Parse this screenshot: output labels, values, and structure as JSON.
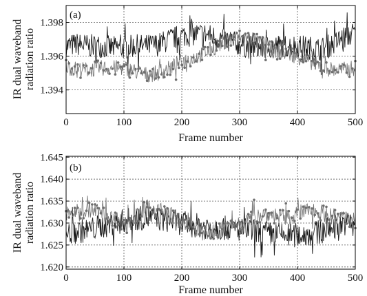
{
  "chart_data": [
    {
      "type": "line",
      "panel_label": "(a)",
      "xlabel": "Frame number",
      "ylabel_lines": [
        "IR dual waveband",
        "radiation ratio"
      ],
      "xlim": [
        0,
        500
      ],
      "ylim": [
        1.3926,
        1.399
      ],
      "xticks": [
        0,
        100,
        200,
        300,
        400,
        500
      ],
      "xtick_labels": [
        "0",
        "100",
        "200",
        "300",
        "400",
        "500"
      ],
      "yticks": [
        1.394,
        1.396,
        1.398
      ],
      "ytick_labels": [
        "1.394",
        "1.396",
        "1.398"
      ],
      "grid": true,
      "series": [
        {
          "color": "#1a1a1a",
          "marker": "none",
          "x": [
            0,
            20,
            40,
            60,
            80,
            100,
            120,
            140,
            160,
            180,
            200,
            220,
            240,
            260,
            280,
            300,
            320,
            340,
            360,
            380,
            400,
            420,
            440,
            460,
            480,
            500
          ],
          "values": [
            1.3966,
            1.3967,
            1.3966,
            1.3966,
            1.3965,
            1.3965,
            1.3966,
            1.3966,
            1.3967,
            1.397,
            1.3972,
            1.3973,
            1.3973,
            1.3971,
            1.3969,
            1.3967,
            1.3965,
            1.3965,
            1.3966,
            1.3966,
            1.3966,
            1.3965,
            1.3964,
            1.3967,
            1.3971,
            1.3974
          ]
        },
        {
          "color": "#6e6e6e",
          "marker": "dot",
          "x": [
            0,
            20,
            40,
            60,
            80,
            100,
            120,
            140,
            160,
            180,
            200,
            220,
            240,
            260,
            280,
            300,
            320,
            340,
            360,
            380,
            400,
            420,
            440,
            460,
            480,
            500
          ],
          "values": [
            1.3954,
            1.3952,
            1.3952,
            1.3953,
            1.3953,
            1.3953,
            1.3951,
            1.3949,
            1.395,
            1.3953,
            1.3957,
            1.3959,
            1.3962,
            1.3966,
            1.397,
            1.3971,
            1.397,
            1.3967,
            1.3963,
            1.3962,
            1.396,
            1.3957,
            1.3954,
            1.3952,
            1.3952,
            1.3953
          ]
        }
      ]
    },
    {
      "type": "line",
      "panel_label": "(b)",
      "xlabel": "Frame number",
      "ylabel_lines": [
        "IR dual waveband",
        "radiation ratio"
      ],
      "xlim": [
        0,
        500
      ],
      "ylim": [
        1.6195,
        1.6452
      ],
      "xticks": [
        0,
        100,
        200,
        300,
        400,
        500
      ],
      "xtick_labels": [
        "0",
        "100",
        "200",
        "300",
        "400",
        "500"
      ],
      "yticks": [
        1.62,
        1.625,
        1.63,
        1.635,
        1.64,
        1.645
      ],
      "ytick_labels": [
        "1.620",
        "1.625",
        "1.630",
        "1.635",
        "1.640",
        "1.645"
      ],
      "grid": true,
      "series": [
        {
          "color": "#1a1a1a",
          "marker": "none",
          "x": [
            0,
            20,
            40,
            60,
            80,
            100,
            120,
            140,
            160,
            180,
            200,
            220,
            240,
            260,
            280,
            300,
            320,
            340,
            360,
            380,
            400,
            420,
            440,
            460,
            480,
            500
          ],
          "values": [
            1.6275,
            1.628,
            1.6285,
            1.6292,
            1.6298,
            1.6305,
            1.631,
            1.6312,
            1.631,
            1.6305,
            1.63,
            1.6296,
            1.6292,
            1.629,
            1.6288,
            1.6285,
            1.6282,
            1.6278,
            1.6275,
            1.6272,
            1.6272,
            1.6275,
            1.628,
            1.629,
            1.63,
            1.63
          ]
        },
        {
          "color": "#6e6e6e",
          "marker": "dot",
          "x": [
            0,
            20,
            40,
            60,
            80,
            100,
            120,
            140,
            160,
            180,
            200,
            220,
            240,
            260,
            280,
            300,
            320,
            340,
            360,
            380,
            400,
            420,
            440,
            460,
            480,
            500
          ],
          "values": [
            1.632,
            1.6325,
            1.633,
            1.6325,
            1.631,
            1.63,
            1.6315,
            1.6335,
            1.633,
            1.632,
            1.63,
            1.6285,
            1.6278,
            1.6278,
            1.629,
            1.63,
            1.631,
            1.632,
            1.6318,
            1.631,
            1.632,
            1.633,
            1.6325,
            1.6315,
            1.631,
            1.6305
          ]
        }
      ]
    }
  ]
}
